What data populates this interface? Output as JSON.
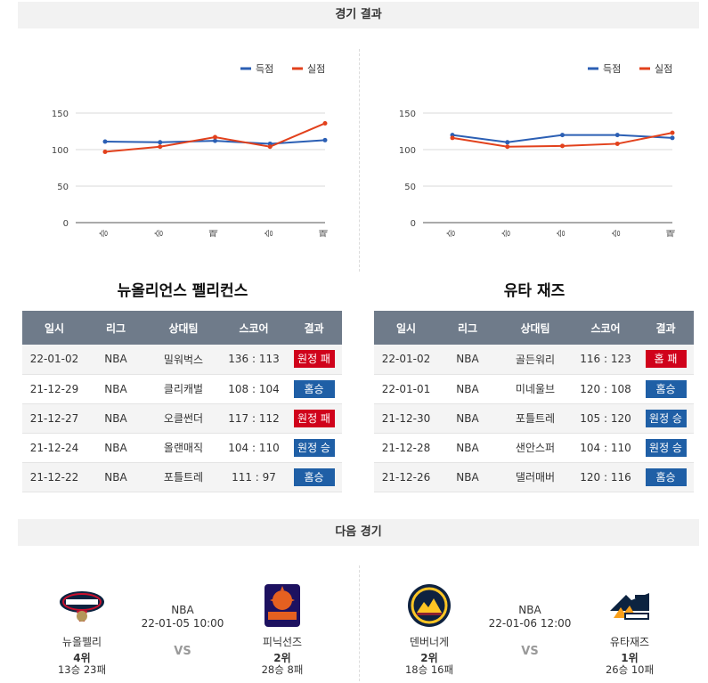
{
  "sections": {
    "results_title": "경기 결과",
    "next_title": "다음 경기"
  },
  "legend": {
    "scored": "득점",
    "allowed": "실점"
  },
  "colors": {
    "scored": "#2b5fb4",
    "allowed": "#e2411c",
    "loss_badge": "#d0021b",
    "win_badge": "#1f5fa6"
  },
  "table_headers": [
    "일시",
    "리그",
    "상대팀",
    "스코어",
    "결과"
  ],
  "teams": [
    {
      "name": "뉴올리언스 펠리컨스",
      "chart_data": {
        "type": "line",
        "categories": [
          "승",
          "승",
          "패",
          "승",
          "패"
        ],
        "series": [
          {
            "name": "득점",
            "values": [
              111,
              110,
              112,
              108,
              113
            ]
          },
          {
            "name": "실점",
            "values": [
              97,
              104,
              117,
              104,
              136
            ]
          }
        ],
        "ylim": [
          0,
          150
        ],
        "yticks": [
          0,
          50,
          100,
          150
        ]
      },
      "games": [
        {
          "date": "22-01-02",
          "league": "NBA",
          "opponent": "밀워벅스",
          "score": "136 : 113",
          "result": "원정 패",
          "kind": "loss"
        },
        {
          "date": "21-12-29",
          "league": "NBA",
          "opponent": "클리캐벌",
          "score": "108 : 104",
          "result": "홈승",
          "kind": "win"
        },
        {
          "date": "21-12-27",
          "league": "NBA",
          "opponent": "오클썬더",
          "score": "117 : 112",
          "result": "원정 패",
          "kind": "loss"
        },
        {
          "date": "21-12-24",
          "league": "NBA",
          "opponent": "올랜매직",
          "score": "104 : 110",
          "result": "원정 승",
          "kind": "win"
        },
        {
          "date": "21-12-22",
          "league": "NBA",
          "opponent": "포틀트레",
          "score": "111 : 97",
          "result": "홈승",
          "kind": "win"
        }
      ]
    },
    {
      "name": "유타 재즈",
      "chart_data": {
        "type": "line",
        "categories": [
          "승",
          "승",
          "승",
          "승",
          "패"
        ],
        "series": [
          {
            "name": "득점",
            "values": [
              120,
              110,
              120,
              120,
              116
            ]
          },
          {
            "name": "실점",
            "values": [
              116,
              104,
              105,
              108,
              123
            ]
          }
        ],
        "ylim": [
          0,
          150
        ],
        "yticks": [
          0,
          50,
          100,
          150
        ]
      },
      "games": [
        {
          "date": "22-01-02",
          "league": "NBA",
          "opponent": "골든워리",
          "score": "116 : 123",
          "result": "홈 패",
          "kind": "loss"
        },
        {
          "date": "22-01-01",
          "league": "NBA",
          "opponent": "미네울브",
          "score": "120 : 108",
          "result": "홈승",
          "kind": "win"
        },
        {
          "date": "21-12-30",
          "league": "NBA",
          "opponent": "포틀트레",
          "score": "105 : 120",
          "result": "원정 승",
          "kind": "win"
        },
        {
          "date": "21-12-28",
          "league": "NBA",
          "opponent": "샌안스퍼",
          "score": "104 : 110",
          "result": "원정 승",
          "kind": "win"
        },
        {
          "date": "21-12-26",
          "league": "NBA",
          "opponent": "댈러매버",
          "score": "120 : 116",
          "result": "홈승",
          "kind": "win"
        }
      ]
    }
  ],
  "next_games": [
    {
      "league": "NBA",
      "datetime": "22-01-05 10:00",
      "vs": "VS",
      "home": {
        "name": "뉴올펠리",
        "rank": "4위",
        "record": "13승 23패",
        "logo": "pelicans-logo"
      },
      "away": {
        "name": "피닉선즈",
        "rank": "2위",
        "record": "28승 8패",
        "logo": "suns-logo"
      }
    },
    {
      "league": "NBA",
      "datetime": "22-01-06 12:00",
      "vs": "VS",
      "home": {
        "name": "덴버너게",
        "rank": "2위",
        "record": "18승 16패",
        "logo": "nuggets-logo"
      },
      "away": {
        "name": "유타재즈",
        "rank": "1위",
        "record": "26승 10패",
        "logo": "jazz-logo"
      }
    }
  ]
}
